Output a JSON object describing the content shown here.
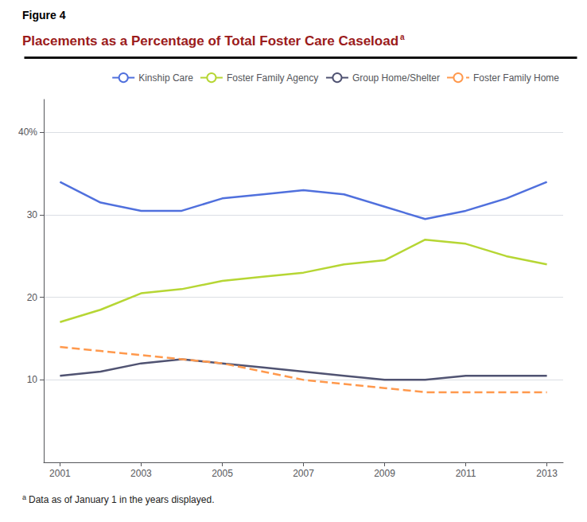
{
  "chart_data": {
    "type": "line",
    "title": "Placements as a Percentage of Total Foster Care Caseload",
    "annotations": [
      "Figure 4",
      "a",
      "a",
      "Data as of January 1 in the years displayed."
    ],
    "x": [
      2001,
      2002,
      2003,
      2004,
      2005,
      2006,
      2007,
      2008,
      2009,
      2010,
      2011,
      2012,
      2013
    ],
    "series": [
      {
        "name": "Kinship Care",
        "values": [
          34,
          31.5,
          30.5,
          30.5,
          32,
          32.5,
          33,
          32.5,
          31,
          29.5,
          30.5,
          32,
          34
        ]
      },
      {
        "name": "Foster Family Agency",
        "values": [
          17,
          18.5,
          20.5,
          21,
          22,
          22.5,
          23,
          24,
          24.5,
          27,
          26.5,
          25,
          24
        ]
      },
      {
        "name": "Group Home/Shelter",
        "values": [
          10.5,
          11,
          12,
          12.5,
          12,
          11.5,
          11,
          10.5,
          10,
          10,
          10.5,
          10.5,
          10.5
        ]
      },
      {
        "name": "Foster Family Home",
        "line_style": "dashed",
        "values": [
          14,
          13.5,
          13,
          12.5,
          12,
          11,
          10,
          9.5,
          9,
          8.5,
          8.5,
          8.5,
          8.5
        ]
      }
    ],
    "xlim": [
      2000.6,
      2013.4
    ],
    "xticks": [
      2001,
      2003,
      2005,
      2007,
      2009,
      2011,
      2013
    ],
    "ylim": [
      0,
      44
    ],
    "yticks": [
      10,
      20,
      30,
      {
        "value": 40,
        "label": "40%"
      }
    ],
    "grid": true,
    "legend": "upper right"
  }
}
